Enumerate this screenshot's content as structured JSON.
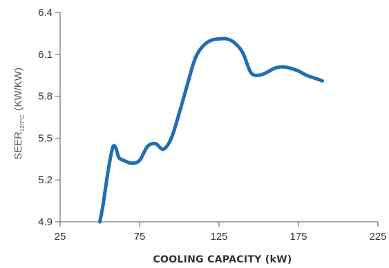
{
  "chart_data": {
    "type": "line",
    "title": "",
    "xlabel": "COOLING CAPACITY (kW)",
    "ylabel": {
      "main": "SEER",
      "subscript": "12/7°C",
      "unit": "(KW/KW)"
    },
    "xlim": [
      25,
      225
    ],
    "ylim": [
      4.9,
      6.4
    ],
    "xticks": [
      "25",
      "75",
      "125",
      "175",
      "225"
    ],
    "yticks": [
      "4.9",
      "5.2",
      "5.5",
      "5.8",
      "6.1",
      "6.4"
    ],
    "grid": false,
    "line_color": "#1f6db5",
    "series": [
      {
        "x": [
          50,
          52,
          55,
          58,
          60,
          62,
          65,
          70,
          75,
          80,
          85,
          90,
          95,
          100,
          105,
          110,
          115,
          120,
          125,
          130,
          135,
          140,
          145,
          150,
          155,
          160,
          165,
          170,
          175,
          180,
          185,
          190
        ],
        "y": [
          4.9,
          5.02,
          5.25,
          5.43,
          5.43,
          5.36,
          5.34,
          5.32,
          5.34,
          5.44,
          5.46,
          5.42,
          5.5,
          5.68,
          5.88,
          6.07,
          6.16,
          6.2,
          6.21,
          6.21,
          6.18,
          6.11,
          5.97,
          5.95,
          5.97,
          6.0,
          6.01,
          6.0,
          5.98,
          5.95,
          5.93,
          5.91
        ]
      }
    ]
  }
}
